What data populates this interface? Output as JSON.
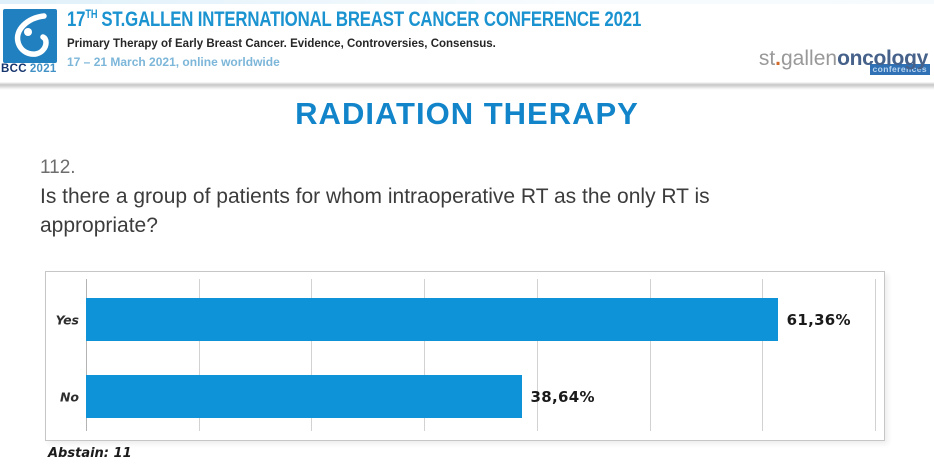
{
  "header": {
    "logo_badge": {
      "bcc": "BCC",
      "year": "2021"
    },
    "title_num": "17",
    "title_sup": "TH",
    "title_rest": "ST.GALLEN INTERNATIONAL BREAST CANCER CONFERENCE 2021",
    "subtitle": "Primary Therapy of Early Breast Cancer. Evidence, Controversies, Consensus.",
    "dates": "17 – 21 March 2021, online worldwide",
    "brand": {
      "st": "st",
      "dot": ".",
      "gallen": "gallen",
      "oncology": "oncology",
      "badge": "conferences"
    }
  },
  "slide": {
    "title": "RADIATION THERAPY",
    "question_number": "112.",
    "question": "Is there a group of patients for whom intraoperative RT as the only RT is appropriate?",
    "abstain": "Abstain: 11"
  },
  "chart_data": {
    "type": "bar",
    "orientation": "horizontal",
    "title": "",
    "categories": [
      "Yes",
      "No"
    ],
    "values": [
      61.36,
      38.64
    ],
    "value_labels": [
      "61,36%",
      "38,64%"
    ],
    "xlim": [
      0,
      70
    ],
    "gridline_interval_percent": 10,
    "grid": true,
    "legend": false,
    "bar_color": "#0f93d8"
  },
  "colors": {
    "header_title_blue": "#1a93d0",
    "slide_title_blue": "#1285ca",
    "date_light_blue": "#7cb6d9",
    "bar_blue": "#0f93d8",
    "logo_square_blue": "#2180c0",
    "brand_orange": "#d26a2a",
    "brand_badge_blue": "#3070b5"
  }
}
